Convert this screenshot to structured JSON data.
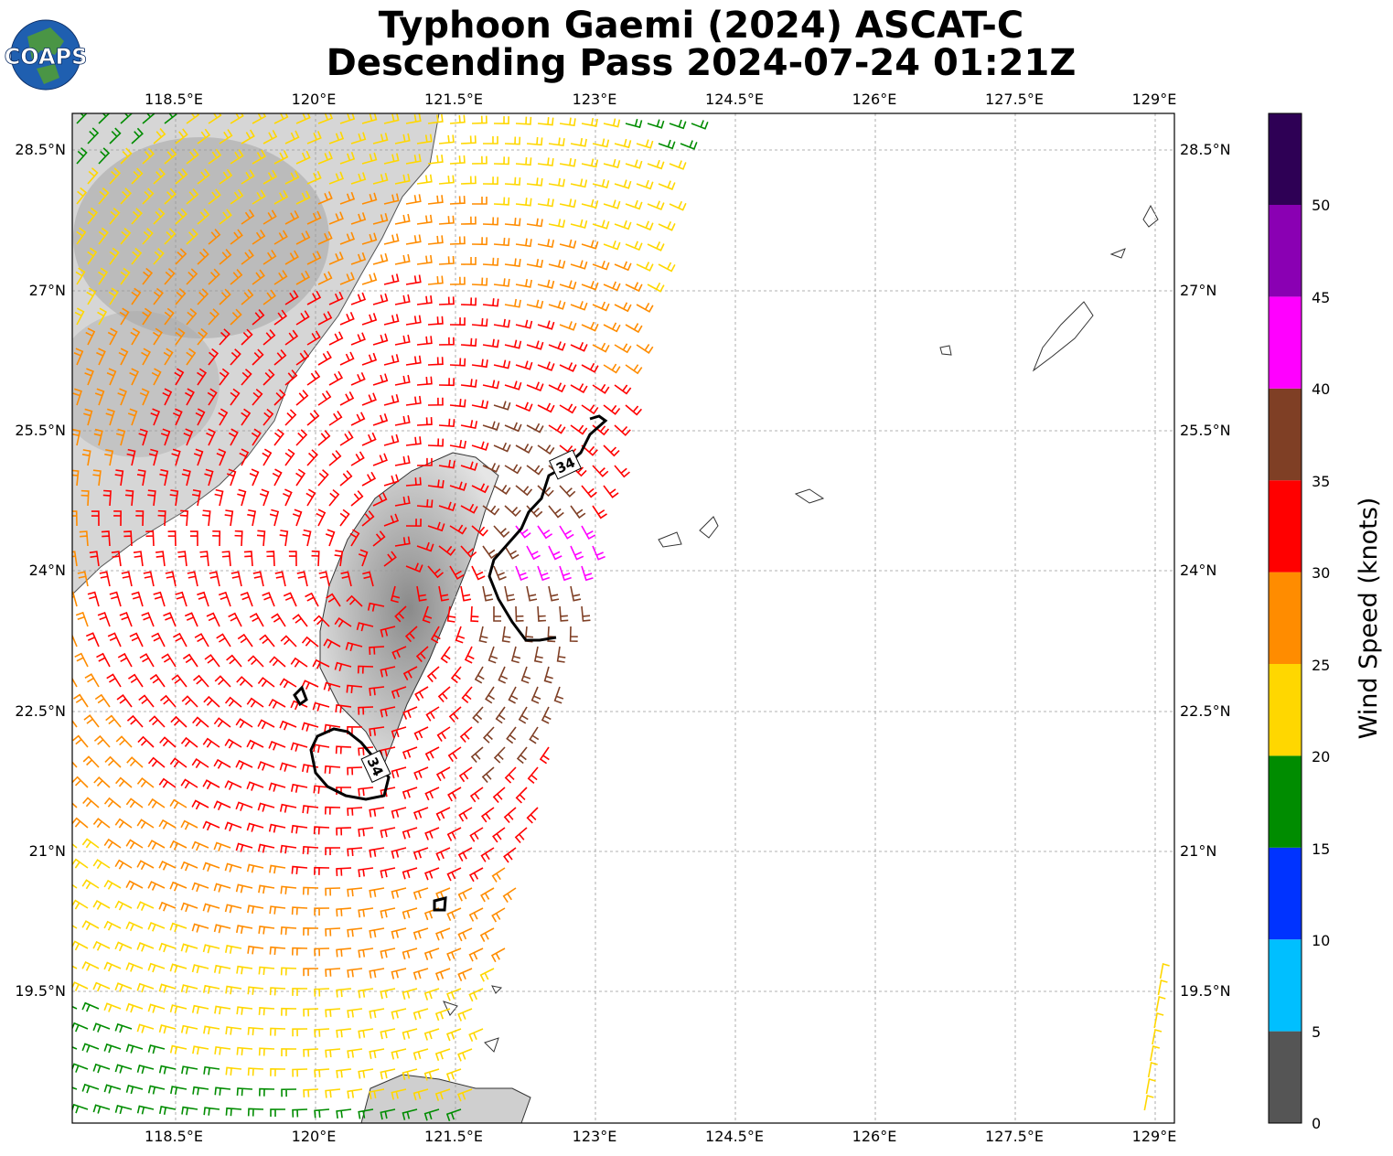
{
  "logo": {
    "text": "COAPS"
  },
  "header": {
    "title_line1": "Typhoon Gaemi (2024) ASCAT-C",
    "title_line2": "Descending Pass 2024-07-24 01:21Z"
  },
  "axes": {
    "lon_ticks": [
      "118.5°E",
      "120°E",
      "121.5°E",
      "123°E",
      "124.5°E",
      "126°E",
      "127.5°E",
      "129°E"
    ],
    "lat_ticks": [
      "28.5°N",
      "27°N",
      "25.5°N",
      "24°N",
      "22.5°N",
      "21°N",
      "19.5°N"
    ],
    "lon_range": [
      117.4,
      129.1
    ],
    "lat_range": [
      17.8,
      28.9
    ],
    "grid": true
  },
  "contour_labels": [
    "34",
    "34"
  ],
  "colorbar": {
    "label": "Wind Speed (knots)",
    "tick_labels": [
      "0",
      "5",
      "10",
      "15",
      "20",
      "25",
      "30",
      "35",
      "40",
      "45",
      "50"
    ],
    "bins": [
      {
        "color": "#555555"
      },
      {
        "color": "#00bfff"
      },
      {
        "color": "#0033ff"
      },
      {
        "color": "#008c00"
      },
      {
        "color": "#ffd700"
      },
      {
        "color": "#ff8c00"
      },
      {
        "color": "#ff0000"
      },
      {
        "color": "#7f3f25"
      },
      {
        "color": "#ff00ff"
      },
      {
        "color": "#8a00b3"
      },
      {
        "color": "#2e0055"
      }
    ]
  }
}
